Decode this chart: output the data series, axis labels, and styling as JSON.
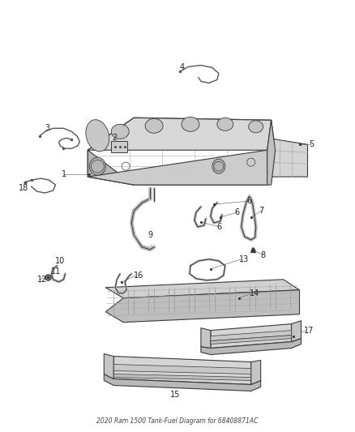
{
  "title": "2020 Ram 1500 Tank-Fuel Diagram for 68408871AC",
  "bg_color": "#ffffff",
  "line_color": "#3a3a3a",
  "fig_width": 4.38,
  "fig_height": 5.33,
  "dpi": 100
}
